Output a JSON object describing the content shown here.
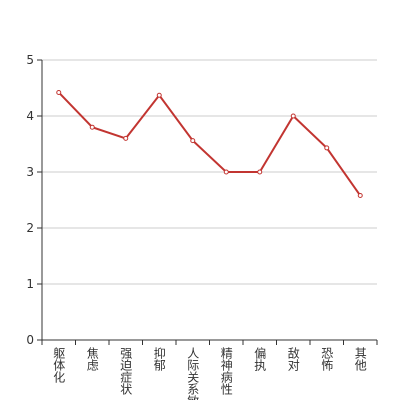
{
  "chart_data": {
    "type": "line",
    "categories": [
      "躯体化",
      "焦虑",
      "强迫症状",
      "抑郁",
      "人际关系敏感",
      "精神病性",
      "偏执",
      "敌对",
      "恐怖",
      "其他"
    ],
    "series": [
      {
        "color": "#c23531",
        "values": [
          4.42,
          3.8,
          3.6,
          4.37,
          3.56,
          3.0,
          3.0,
          4.0,
          3.43,
          2.58
        ]
      }
    ],
    "ylim": [
      0,
      5
    ],
    "yticks": [
      0,
      1,
      2,
      3,
      4,
      5
    ],
    "grid": true
  }
}
